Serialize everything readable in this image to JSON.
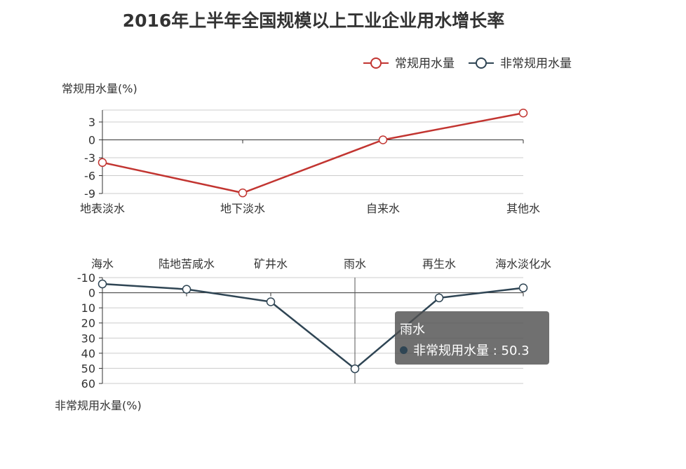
{
  "title": "2016年上半年全国规模以上工业企业用水增长率",
  "legend": [
    {
      "name": "常规用水量",
      "color": "#c23531"
    },
    {
      "name": "非常规用水量",
      "color": "#2f4554"
    }
  ],
  "tooltip": {
    "category": "雨水",
    "series": "非常规用水量",
    "value": "50.3",
    "row_text": "非常规用水量 : 50.3"
  },
  "chart_data": [
    {
      "type": "line",
      "series": [
        {
          "name": "常规用水量",
          "values": [
            -3.8,
            -8.9,
            0,
            4.5
          ],
          "color": "#c23531"
        }
      ],
      "categories": [
        "地表淡水",
        "地下淡水",
        "自来水",
        "其他水"
      ],
      "ylabel": "常规用水量(%)",
      "ylim": [
        -9,
        5
      ],
      "yticks": [
        -9,
        -6,
        -3,
        0,
        3
      ],
      "xaxis_position": "bottom",
      "grid": true
    },
    {
      "type": "line",
      "series": [
        {
          "name": "非常规用水量",
          "values": [
            -5.8,
            -2.3,
            6,
            50.3,
            3.4,
            -3.2
          ],
          "color": "#2f4554"
        }
      ],
      "categories": [
        "海水",
        "陆地苦咸水",
        "矿井水",
        "雨水",
        "再生水",
        "海水淡化水"
      ],
      "ylabel": "非常规用水量(%)",
      "ylim": [
        -10,
        60
      ],
      "yticks": [
        -10,
        0,
        10,
        20,
        30,
        40,
        50,
        60
      ],
      "y_inverted": true,
      "xaxis_position": "top",
      "grid": true
    }
  ]
}
